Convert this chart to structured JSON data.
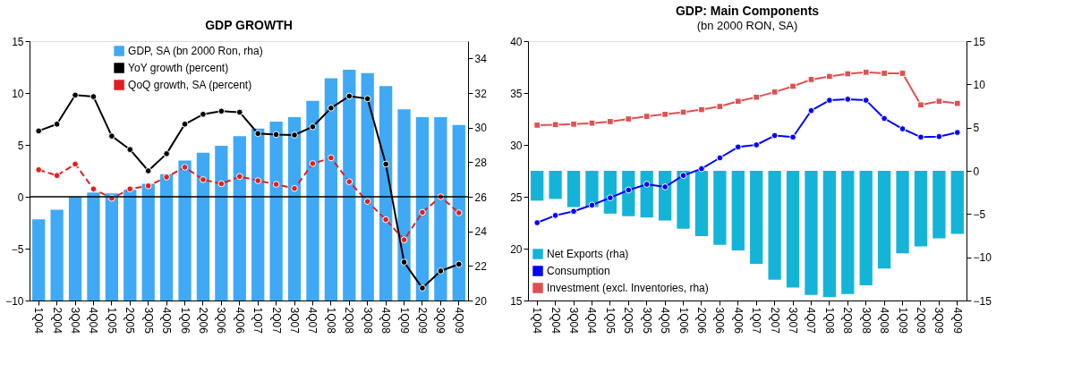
{
  "chart_data": [
    {
      "type": "bar",
      "title": "GDP GROWTH",
      "categories": [
        "1Q04",
        "2Q04",
        "3Q04",
        "4Q04",
        "1Q05",
        "2Q05",
        "3Q05",
        "4Q05",
        "1Q06",
        "2Q06",
        "3Q06",
        "4Q06",
        "1Q07",
        "2Q07",
        "3Q07",
        "4Q07",
        "1Q08",
        "2Q08",
        "3Q08",
        "4Q08",
        "1Q09",
        "2Q09",
        "3Q09",
        "4Q09"
      ],
      "series": [
        {
          "name": "GDP, SA (bn 2000 Ron, rha)",
          "axis": "y2",
          "color": "#3fa9f5",
          "values": [
            24.7,
            25.25,
            26.0,
            26.25,
            26.2,
            26.4,
            26.75,
            27.3,
            28.1,
            28.55,
            28.95,
            29.5,
            29.95,
            30.35,
            30.6,
            31.55,
            32.85,
            33.35,
            33.15,
            32.4,
            31.05,
            30.6,
            30.6,
            30.15
          ]
        },
        {
          "name": "YoY growth (percent)",
          "type": "line",
          "axis": "y",
          "color": "#000000",
          "marker": "circle",
          "line_style": "solid",
          "values": [
            6.35,
            7.0,
            9.8,
            9.65,
            5.85,
            4.55,
            2.5,
            4.15,
            7.0,
            7.95,
            8.25,
            8.15,
            6.1,
            6.0,
            5.95,
            6.75,
            8.55,
            9.7,
            9.45,
            3.15,
            -6.3,
            -8.8,
            -7.15,
            -6.5
          ]
        },
        {
          "name": "QoQ growth, SA (percent)",
          "type": "line",
          "axis": "y",
          "color": "#e02020",
          "marker": "circle",
          "line_style": "dashed",
          "values": [
            2.6,
            2.05,
            3.15,
            0.75,
            -0.15,
            0.75,
            1.05,
            1.9,
            2.85,
            1.65,
            1.25,
            1.95,
            1.55,
            1.2,
            0.8,
            3.2,
            3.75,
            1.45,
            -0.45,
            -2.2,
            -4.15,
            -1.5,
            0.0,
            -1.55
          ]
        }
      ],
      "ylim": [
        -10,
        15
      ],
      "yticks": [
        -10,
        -5,
        0,
        5,
        10,
        15
      ],
      "y2lim": [
        20,
        35
      ],
      "y2ticks": [
        20,
        22,
        24,
        26,
        28,
        30,
        32,
        34
      ],
      "ref_lines": [
        {
          "axis": "y",
          "value": 0,
          "color": "#000000"
        }
      ],
      "legend": "top left"
    },
    {
      "type": "bar",
      "title": "GDP: Main Components",
      "subtitle": "(bn 2000 RON, SA)",
      "categories": [
        "1Q04",
        "2Q04",
        "3Q04",
        "4Q04",
        "1Q05",
        "2Q05",
        "3Q05",
        "4Q05",
        "1Q06",
        "2Q06",
        "3Q06",
        "4Q06",
        "1Q07",
        "2Q07",
        "3Q07",
        "4Q07",
        "1Q08",
        "2Q08",
        "3Q08",
        "4Q08",
        "1Q09",
        "2Q09",
        "3Q09",
        "4Q09"
      ],
      "series": [
        {
          "name": "Net Exports (rha)",
          "axis": "y2",
          "color": "#14b4d8",
          "values": [
            -3.45,
            -3.25,
            -4.2,
            -4.2,
            -4.95,
            -5.25,
            -5.4,
            -5.75,
            -6.7,
            -7.55,
            -8.55,
            -9.2,
            -10.75,
            -12.6,
            -13.5,
            -14.35,
            -14.6,
            -14.25,
            -13.25,
            -11.3,
            -9.55,
            -8.75,
            -7.8,
            -7.3
          ]
        },
        {
          "name": "Consumption",
          "type": "line",
          "axis": "y",
          "color": "#0000ff",
          "marker": "circle",
          "line_style": "solid",
          "values": [
            22.5,
            23.2,
            23.6,
            24.2,
            24.9,
            25.65,
            26.2,
            25.95,
            27.05,
            27.7,
            28.75,
            29.8,
            30.0,
            30.9,
            30.75,
            33.3,
            34.3,
            34.4,
            34.3,
            32.55,
            31.55,
            30.75,
            30.8,
            31.2
          ]
        },
        {
          "name": "Investment (excl. Inventories, rha)",
          "type": "line",
          "axis": "y",
          "color": "#e05050",
          "marker": "square",
          "line_style": "solid",
          "values": [
            31.9,
            31.95,
            32.0,
            32.1,
            32.25,
            32.5,
            32.75,
            32.95,
            33.15,
            33.4,
            33.7,
            34.2,
            34.6,
            35.1,
            35.65,
            36.3,
            36.6,
            36.85,
            37.0,
            36.9,
            36.9,
            33.85,
            34.2,
            34.0
          ]
        }
      ],
      "ylim": [
        15,
        40
      ],
      "yticks": [
        15,
        20,
        25,
        30,
        35,
        40
      ],
      "y2lim": [
        -15,
        15
      ],
      "y2ticks": [
        -15,
        -10,
        -5,
        0,
        5,
        10,
        15
      ],
      "legend": "bottom left"
    }
  ]
}
